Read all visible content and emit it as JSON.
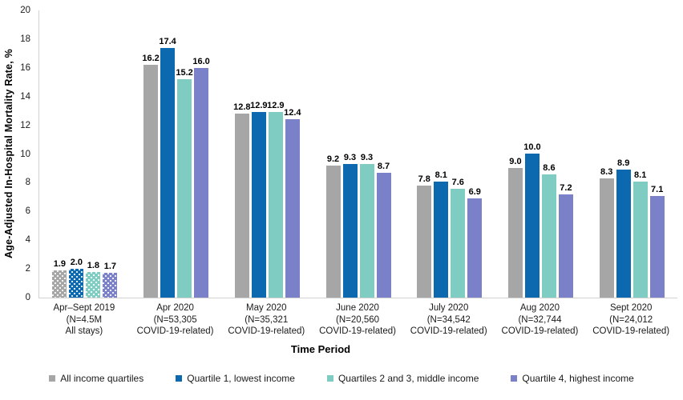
{
  "chart_data": {
    "type": "bar",
    "title": "",
    "xlabel": "Time Period",
    "ylabel": "Age-Adjusted In-Hospital Mortality Rate, %",
    "ylim": [
      0,
      20
    ],
    "yticks": [
      0,
      2,
      4,
      6,
      8,
      10,
      12,
      14,
      16,
      18,
      20
    ],
    "grid": false,
    "legend_position": "bottom",
    "value_label_format": "one_decimal",
    "patterned_category_index": 0,
    "pattern_note": "first category bars use white polka-dot fill",
    "categories": [
      [
        "Apr–Sept 2019",
        "(N=4.5M",
        "All stays)"
      ],
      [
        "Apr 2020",
        "(N=53,305",
        "COVID-19-related)"
      ],
      [
        "May 2020",
        "(N=35,321",
        "COVID-19-related)"
      ],
      [
        "June 2020",
        "(N=20,560",
        "COVID-19-related)"
      ],
      [
        "July 2020",
        "(N=34,542",
        "COVID-19-related)"
      ],
      [
        "Aug 2020",
        "(N=32,744",
        "COVID-19-related)"
      ],
      [
        "Sept 2020",
        "(N=24,012",
        "COVID-19-related)"
      ]
    ],
    "series": [
      {
        "name": "All income quartiles",
        "color": "#a6a6a6",
        "values": [
          1.9,
          16.2,
          12.8,
          9.2,
          7.8,
          9.0,
          8.3
        ]
      },
      {
        "name": "Quartile 1, lowest income",
        "color": "#0c68af",
        "values": [
          2.0,
          17.4,
          12.9,
          9.3,
          8.1,
          10.0,
          8.9
        ]
      },
      {
        "name": "Quartiles 2 and 3, middle income",
        "color": "#7fcdc2",
        "values": [
          1.8,
          15.2,
          12.9,
          9.3,
          7.6,
          8.6,
          8.1
        ]
      },
      {
        "name": "Quartile 4, highest income",
        "color": "#7b81c8",
        "values": [
          1.7,
          16.0,
          12.4,
          8.7,
          6.9,
          7.2,
          7.1
        ]
      }
    ],
    "axis_color": "#d2d2d2"
  }
}
